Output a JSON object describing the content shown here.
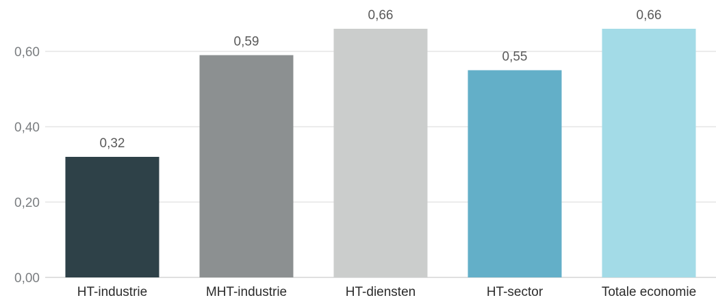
{
  "chart_data": {
    "type": "bar",
    "categories": [
      "HT-industrie",
      "MHT-industrie",
      "HT-diensten",
      "HT-sector",
      "Totale economie"
    ],
    "values": [
      0.32,
      0.59,
      0.66,
      0.55,
      0.66
    ],
    "value_labels": [
      "0,32",
      "0,59",
      "0,66",
      "0,55",
      "0,66"
    ],
    "colors": [
      "#2e4148",
      "#8c9091",
      "#cbcdcc",
      "#63afc8",
      "#a3dbe7"
    ],
    "ylim": [
      0,
      0.66
    ],
    "yticks": [
      0,
      0.2,
      0.4,
      0.6
    ],
    "ytick_labels": [
      "0,00",
      "0,20",
      "0,40",
      "0,60"
    ],
    "grid": true,
    "legend": "none"
  }
}
